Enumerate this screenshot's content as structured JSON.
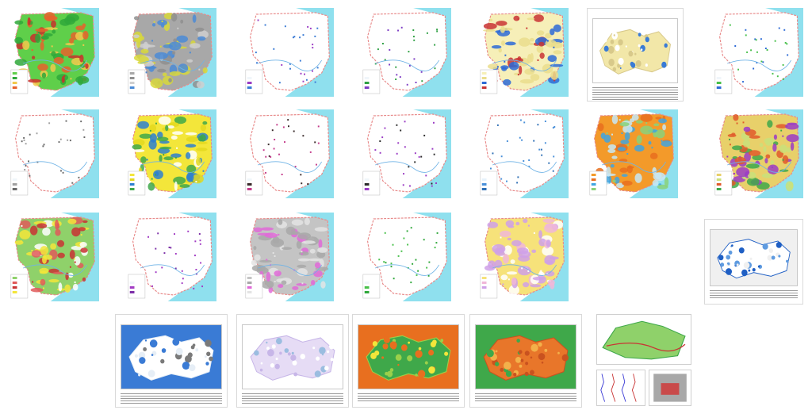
{
  "gallery": {
    "row_tiles": [
      {
        "theme": "green-red-relief",
        "colors": [
          "#5fcf4a",
          "#2fa83a",
          "#f2c94c",
          "#e8622c",
          "#c9302c"
        ]
      },
      {
        "theme": "gray-admin",
        "colors": [
          "#a8a8a8",
          "#8f8f8f",
          "#cfcfcf",
          "#4b8bd6",
          "#d8d83a"
        ]
      },
      {
        "theme": "sparse-points-purple",
        "colors": [
          "#ffffff",
          "#f0f6fa",
          "#9b3cc4",
          "#3a7bd5"
        ]
      },
      {
        "theme": "sparse-points-green",
        "colors": [
          "#ffffff",
          "#f0f6fa",
          "#2ea043",
          "#7d3cc4"
        ]
      },
      {
        "theme": "yellow-coast",
        "colors": [
          "#f6efb8",
          "#eadd8c",
          "#2d6ad6",
          "#c93434"
        ]
      },
      {
        "theme": "green-band",
        "colors": [
          "#2fa83a",
          "#1f7d2a",
          "#ffffff",
          "#f0f6fa"
        ]
      },
      {
        "theme": "sparse-points-green-b",
        "colors": [
          "#ffffff",
          "#f0f6fa",
          "#48c04a",
          "#2d6ad6"
        ]
      },
      {
        "theme": "sparse-points-gray",
        "colors": [
          "#ffffff",
          "#f0f6fa",
          "#a0a0a0",
          "#6a6a6a"
        ]
      },
      {
        "theme": "yellow-blue-landcover",
        "colors": [
          "#f3e63a",
          "#e3d81e",
          "#2c7fd0",
          "#3fa84a",
          "#ffffff"
        ]
      },
      {
        "theme": "dark-points-a",
        "colors": [
          "#ffffff",
          "#f0f6fa",
          "#3a2b2b",
          "#c43c8b"
        ]
      },
      {
        "theme": "dark-points-b",
        "colors": [
          "#ffffff",
          "#f0f6fa",
          "#2b2b2b",
          "#9b3cc4"
        ]
      },
      {
        "theme": "blue-outline",
        "colors": [
          "#ffffff",
          "#e6f2fb",
          "#4a90d9",
          "#2f6fb5"
        ]
      },
      {
        "theme": "orange-blue-zones",
        "colors": [
          "#f39a2a",
          "#e86f1f",
          "#3fa5e0",
          "#8ad17a",
          "#c7e8f5"
        ]
      },
      {
        "theme": "soil-mosaic",
        "colors": [
          "#e8d06a",
          "#c9e07a",
          "#e05a2a",
          "#3fa84a",
          "#9b3cc4"
        ]
      },
      {
        "theme": "green-red-mosaic",
        "colors": [
          "#8fd16a",
          "#e05a5a",
          "#c93434",
          "#f3e63a",
          "#ffffff"
        ]
      },
      {
        "theme": "purple-points",
        "colors": [
          "#ffffff",
          "#f0f6fa",
          "#a23cc4",
          "#7d2fa8"
        ]
      },
      {
        "theme": "hillshade-gray",
        "colors": [
          "#c4c4c4",
          "#a8a8a8",
          "#e06ad8",
          "#e4e4e4"
        ]
      },
      {
        "theme": "green-outline-points",
        "colors": [
          "#ffffff",
          "#f0f6fa",
          "#48c04a",
          "#2fa83a"
        ]
      },
      {
        "theme": "yellow-pink-zones",
        "colors": [
          "#f6e27a",
          "#f0b7d8",
          "#cfa0e8",
          "#ffffff"
        ]
      }
    ],
    "doc_tiles": [
      {
        "theme": "corridor-yellow",
        "colors": [
          "#f2e7a8",
          "#d8c98a",
          "#3a7bd5",
          "#ffffff"
        ],
        "text_lines": 6
      },
      {
        "theme": "blue-patches",
        "colors": [
          "#ffffff",
          "#1f5fc4",
          "#5f9be0",
          "#f0f0f0"
        ],
        "text_lines": 4
      },
      {
        "theme": "outline-lines",
        "colors": [
          "#ffffff",
          "#e6eef6",
          "#7a7a7a",
          "#3a7bd5"
        ],
        "text_lines": 5
      },
      {
        "theme": "lavender-lake",
        "colors": [
          "#e6dcf5",
          "#c7b6e8",
          "#9bbde0",
          "#ffffff"
        ],
        "text_lines": 5
      },
      {
        "theme": "green-yellow-suitability",
        "colors": [
          "#3fa84a",
          "#9bd04a",
          "#f3e63a",
          "#e86f1f"
        ],
        "text_lines": 4
      },
      {
        "theme": "orange-erosion",
        "colors": [
          "#e8762a",
          "#c9521f",
          "#f3b04a",
          "#3fa84a"
        ],
        "text_lines": 4
      }
    ],
    "mini_tiles": [
      {
        "theme": "green-map",
        "colors": [
          "#3fa84a",
          "#8fd16a",
          "#c93434",
          "#ffffff"
        ]
      },
      {
        "theme": "profile-charts",
        "colors": [
          "#3a3ad5",
          "#c93434",
          "#7a7a7a",
          "#ffffff"
        ]
      },
      {
        "theme": "photo-sample",
        "colors": [
          "#a8a8a8",
          "#c94a4a",
          "#8a8a8a",
          "#e0e0e0"
        ]
      }
    ]
  }
}
